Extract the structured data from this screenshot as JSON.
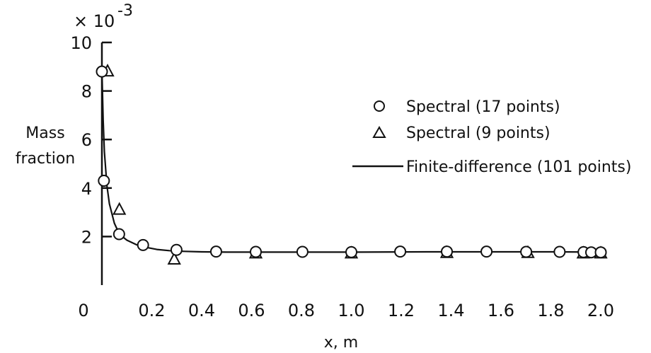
{
  "chart_data": {
    "type": "line",
    "title": "",
    "xlabel": "x,  m",
    "ylabel_line1": "Mass",
    "ylabel_line2": "fraction",
    "y_multiplier_prefix": "× 10",
    "y_multiplier_exponent": "-3",
    "xlim": [
      0,
      2.0
    ],
    "ylim": [
      0,
      10
    ],
    "x_ticks": [
      "0",
      "0.2",
      "0.4",
      "0.6",
      "0.8",
      "1.0",
      "1.2",
      "1.4",
      "1.6",
      "1.8",
      "2.0"
    ],
    "y_ticks": [
      "2",
      "4",
      "6",
      "8",
      "10"
    ],
    "grid": false,
    "legend_position": "right",
    "series": [
      {
        "name": "Spectral (17 points)",
        "marker": "circle",
        "x": [
          0.0,
          0.008,
          0.069,
          0.165,
          0.299,
          0.458,
          0.617,
          0.804,
          1.0,
          1.196,
          1.383,
          1.542,
          1.701,
          1.835,
          1.931,
          1.99,
          2.0
        ],
        "y": [
          8.8,
          4.3,
          2.1,
          1.65,
          1.45,
          1.38,
          1.37,
          1.37,
          1.36,
          1.38,
          1.38,
          1.38,
          1.37,
          1.37,
          1.36,
          1.35,
          1.35
        ]
      },
      {
        "name": "Spectral (9 points)",
        "marker": "triangle",
        "x": [
          0.0,
          0.07,
          0.29,
          0.617,
          1.0,
          1.383,
          1.708,
          1.93,
          2.0
        ],
        "y": [
          8.8,
          3.1,
          1.05,
          1.3,
          1.3,
          1.32,
          1.32,
          1.3,
          1.3
        ]
      },
      {
        "name": "Finite-difference (101 points)",
        "marker": "line",
        "x": [
          0.0,
          0.005,
          0.01,
          0.02,
          0.03,
          0.05,
          0.07,
          0.1,
          0.14,
          0.18,
          0.22,
          0.27,
          0.33,
          0.4,
          0.5,
          0.7,
          1.0,
          1.3,
          1.6,
          1.8,
          2.0
        ],
        "y": [
          8.9,
          6.8,
          5.5,
          4.1,
          3.35,
          2.55,
          2.1,
          1.85,
          1.66,
          1.55,
          1.47,
          1.42,
          1.39,
          1.37,
          1.36,
          1.36,
          1.36,
          1.37,
          1.37,
          1.37,
          1.36
        ]
      }
    ]
  }
}
